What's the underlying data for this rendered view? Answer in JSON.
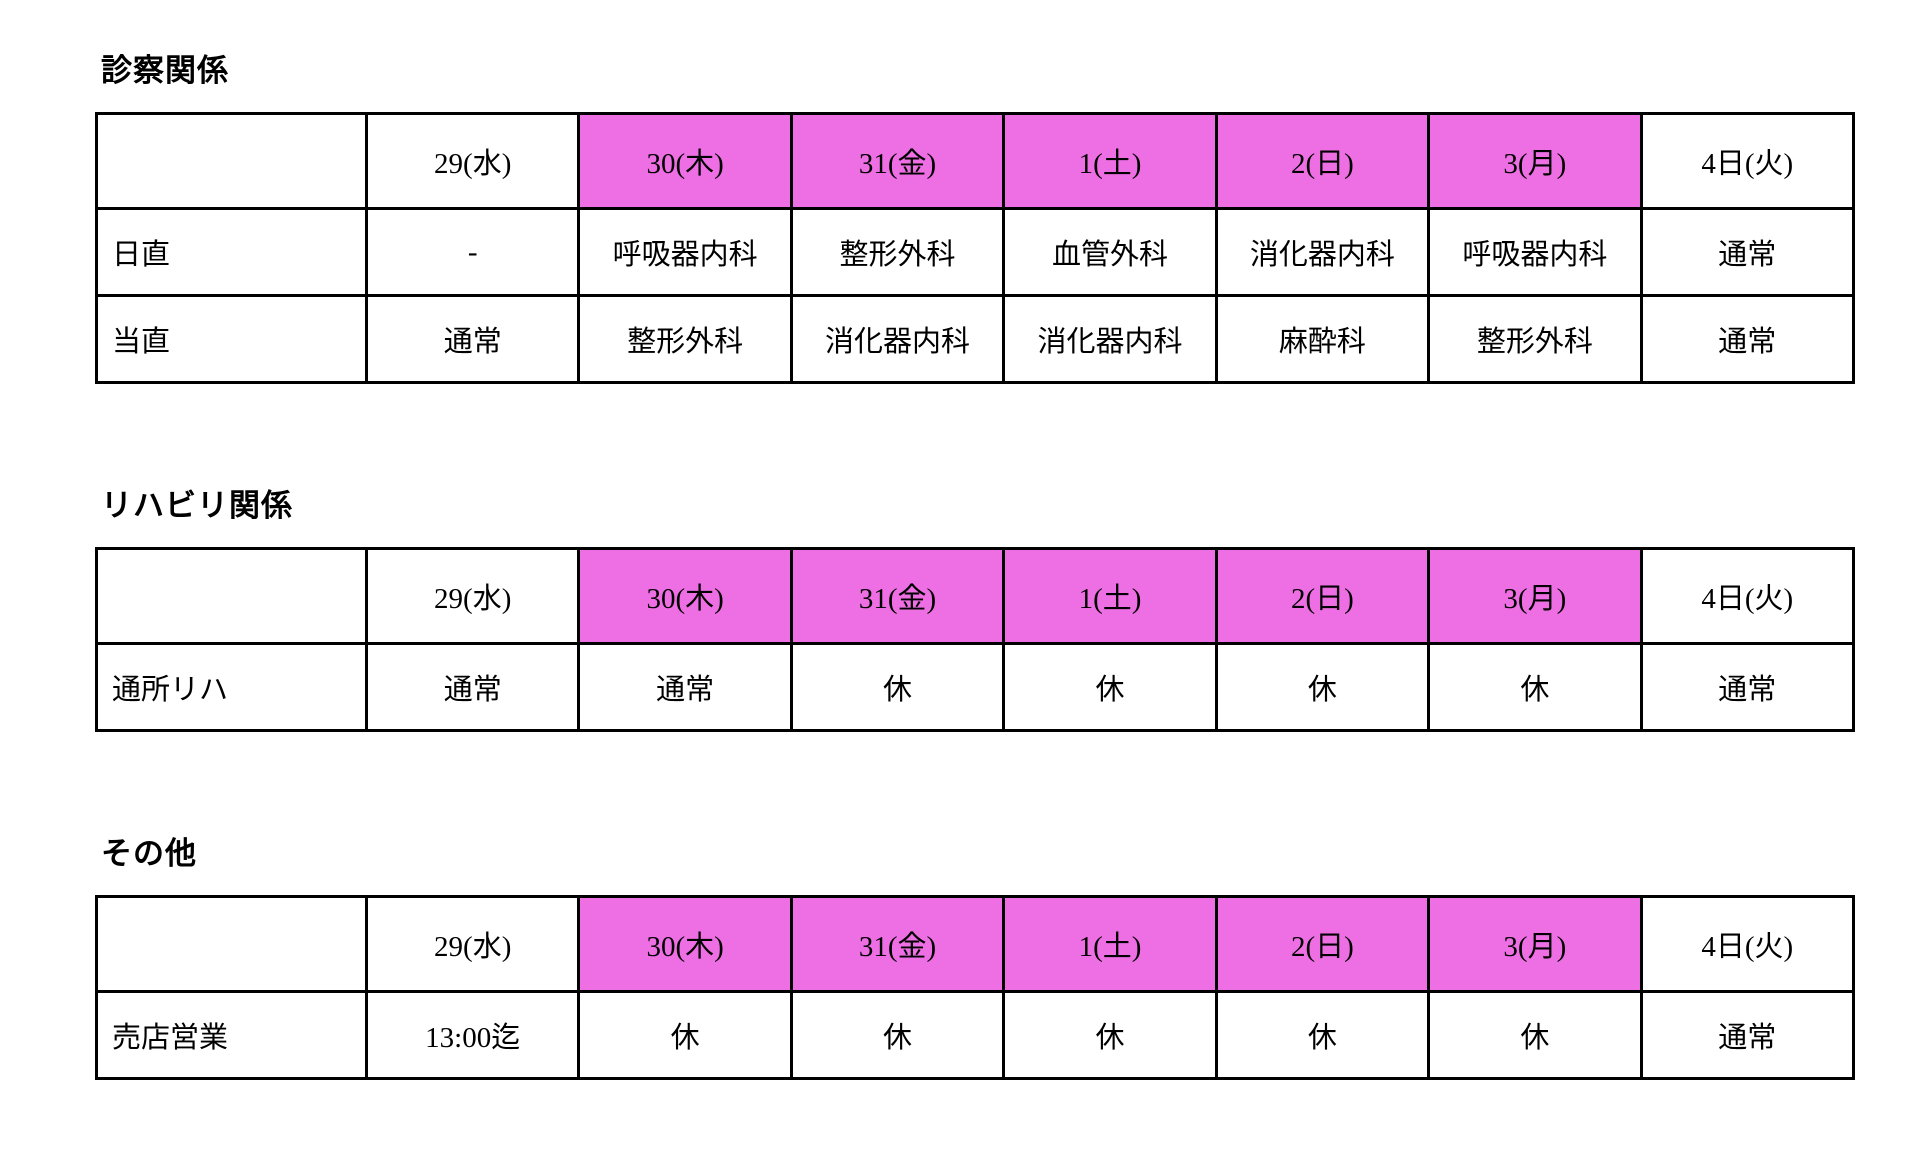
{
  "colors": {
    "highlight": "#EE6FE4"
  },
  "tables": [
    {
      "title": "診察関係",
      "headers": [
        "",
        "29(水)",
        "30(木)",
        "31(金)",
        "1(土)",
        "2(日)",
        "3(月)",
        "4日(火)"
      ],
      "rows": [
        {
          "label": "日直",
          "cells": [
            "-",
            "呼吸器内科",
            "整形外科",
            "血管外科",
            "消化器内科",
            "呼吸器内科",
            "通常"
          ]
        },
        {
          "label": "当直",
          "cells": [
            "通常",
            "整形外科",
            "消化器内科",
            "消化器内科",
            "麻酔科",
            "整形外科",
            "通常"
          ]
        }
      ]
    },
    {
      "title": "リハビリ関係",
      "headers": [
        "",
        "29(水)",
        "30(木)",
        "31(金)",
        "1(土)",
        "2(日)",
        "3(月)",
        "4日(火)"
      ],
      "rows": [
        {
          "label": "通所リハ",
          "cells": [
            "通常",
            "通常",
            "休",
            "休",
            "休",
            "休",
            "通常"
          ]
        }
      ]
    },
    {
      "title": "その他",
      "headers": [
        "",
        "29(水)",
        "30(木)",
        "31(金)",
        "1(土)",
        "2(日)",
        "3(月)",
        "4日(火)"
      ],
      "rows": [
        {
          "label": "売店営業",
          "cells": [
            "13:00迄",
            "休",
            "休",
            "休",
            "休",
            "休",
            "通常"
          ]
        }
      ]
    }
  ]
}
